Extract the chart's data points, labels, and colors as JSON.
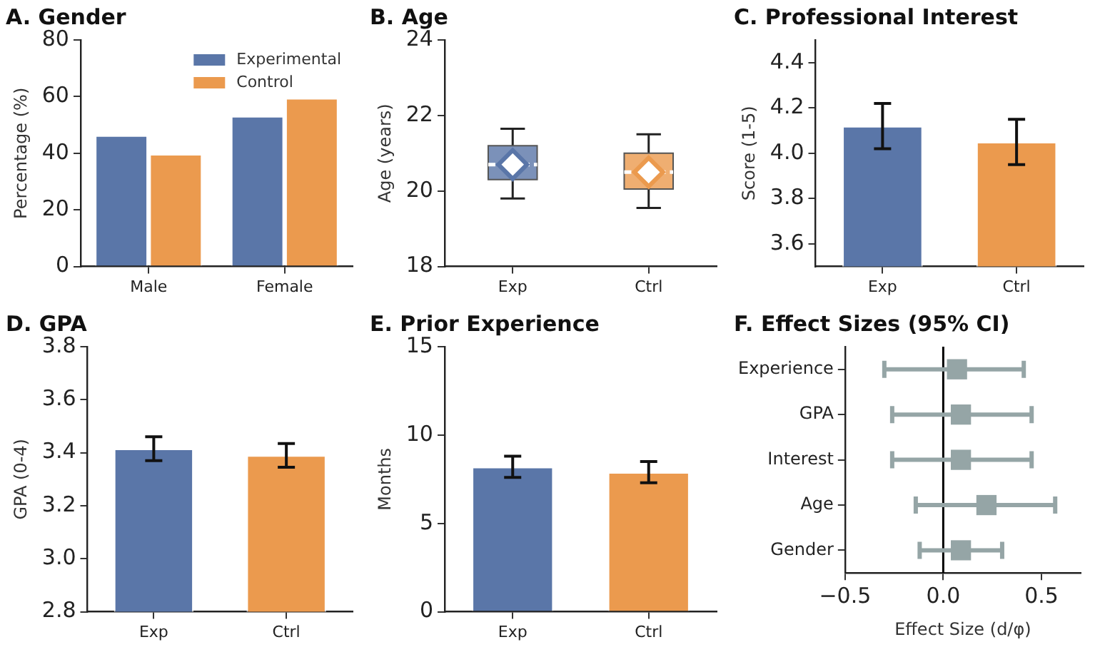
{
  "chart_data": [
    {
      "type": "bar",
      "title": "A. Gender",
      "ylabel": "Percentage (%)",
      "categories": [
        "Male",
        "Female"
      ],
      "series": [
        {
          "name": "Experimental",
          "color": "#5a76a8",
          "values": [
            46.3,
            53.1
          ]
        },
        {
          "name": "Control",
          "color": "#eb9a4e",
          "values": [
            39.7,
            59.5
          ]
        }
      ],
      "ylim": [
        0,
        80
      ],
      "yticks": [
        0,
        20,
        40,
        60,
        80
      ],
      "legend": "top right"
    },
    {
      "type": "box",
      "title": "B. Age",
      "ylabel": "Age (years)",
      "categories": [
        "Exp",
        "Ctrl"
      ],
      "colors": [
        "#5a76a8",
        "#eb9a4e"
      ],
      "boxes": [
        {
          "low": 19.8,
          "q1": 20.3,
          "median": 20.7,
          "q3": 21.2,
          "high": 21.65,
          "mean": 20.7
        },
        {
          "low": 19.55,
          "q1": 20.05,
          "median": 20.5,
          "q3": 21.0,
          "high": 21.5,
          "mean": 20.5
        }
      ],
      "ylim": [
        18,
        24
      ],
      "yticks": [
        18,
        20,
        22,
        24
      ]
    },
    {
      "type": "bar",
      "title": "C. Professional Interest",
      "ylabel": "Score (1-5)",
      "categories": [
        "Exp",
        "Ctrl"
      ],
      "values": [
        4.12,
        4.05
      ],
      "colors": [
        "#5a76a8",
        "#eb9a4e"
      ],
      "errors": [
        0.1,
        0.1
      ],
      "ylim": [
        3.5,
        4.5
      ],
      "yticks": [
        3.6,
        3.8,
        {
          "value": 4.0,
          "label": "4.0"
        },
        4.2,
        4.4
      ]
    },
    {
      "type": "bar",
      "title": "D. GPA",
      "ylabel": "GPA (0-4)",
      "categories": [
        "Exp",
        "Ctrl"
      ],
      "values": [
        3.415,
        3.39
      ],
      "colors": [
        "#5a76a8",
        "#eb9a4e"
      ],
      "errors": [
        0.045,
        0.045
      ],
      "ylim": [
        2.8,
        3.8
      ],
      "yticks": [
        2.8,
        {
          "value": 3.0,
          "label": "3.0"
        },
        3.2,
        3.4,
        3.6,
        3.8
      ]
    },
    {
      "type": "bar",
      "title": "E. Prior Experience",
      "ylabel": "Months",
      "categories": [
        "Exp",
        "Ctrl"
      ],
      "values": [
        8.2,
        7.9
      ],
      "colors": [
        "#5a76a8",
        "#eb9a4e"
      ],
      "errors": [
        0.6,
        0.6
      ],
      "ylim": [
        0,
        15
      ],
      "yticks": [
        0,
        5,
        10,
        15
      ]
    },
    {
      "type": "scatter",
      "orientation": "horizontal",
      "title": "F. Effect Sizes (95% CI)",
      "xlabel": "Effect Size (d/φ)",
      "categories": [
        "Experience",
        "GPA",
        "Interest",
        "Age",
        "Gender"
      ],
      "values": [
        0.07,
        0.09,
        0.09,
        0.22,
        0.09
      ],
      "color": "#95a5a6",
      "marker": "square",
      "errors": [
        [
          -0.3,
          0.41
        ],
        [
          -0.26,
          0.45
        ],
        [
          -0.26,
          0.45
        ],
        [
          -0.14,
          0.57
        ],
        [
          -0.12,
          0.3
        ]
      ],
      "xlim": [
        -0.5,
        0.7
      ],
      "xticks": [
        {
          "value": -0.5,
          "label": "−0.5"
        },
        {
          "value": 0,
          "label": "0.0"
        },
        0.5
      ],
      "ref_lines": [
        {
          "axis": "x",
          "value": 0,
          "color": "#000000"
        }
      ]
    }
  ]
}
